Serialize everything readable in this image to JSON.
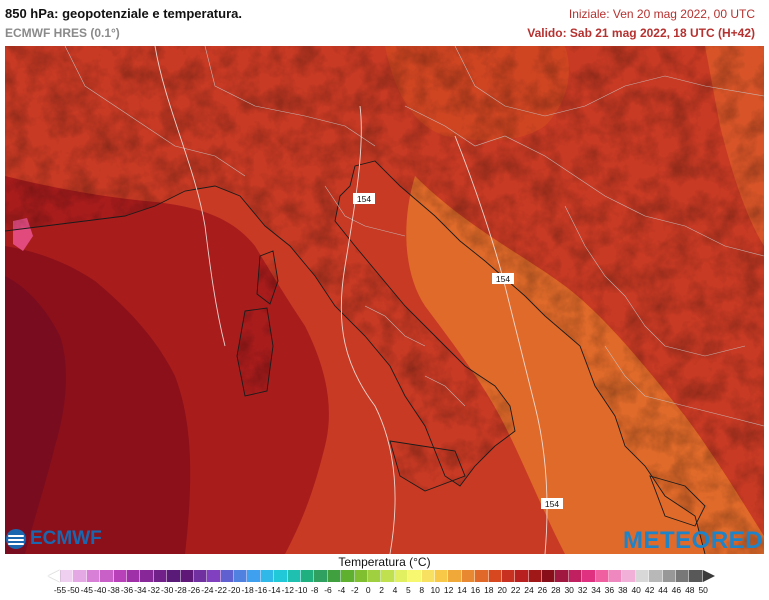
{
  "header": {
    "title": "850 hPa: geopotenziale e temperatura.",
    "model": "ECMWF HRES (0.1°)",
    "init": "Iniziale: Ven 20 mag 2022, 00 UTC",
    "valid": "Valido: Sab 21 mag 2022, 18 UTC (H+42)"
  },
  "map": {
    "contour_labels": [
      "154",
      "154",
      "154"
    ]
  },
  "logos": {
    "left": "ECMWF",
    "right": "METEORED"
  },
  "legend": {
    "title": "Temperatura (°C)",
    "ticks": [
      "-55",
      "-50",
      "-45",
      "-40",
      "-38",
      "-36",
      "-34",
      "-32",
      "-30",
      "-28",
      "-26",
      "-24",
      "-22",
      "-20",
      "-18",
      "-16",
      "-14",
      "-12",
      "-10",
      "-8",
      "-6",
      "-4",
      "-2",
      "0",
      "2",
      "4",
      "5",
      "8",
      "10",
      "12",
      "14",
      "16",
      "18",
      "20",
      "22",
      "24",
      "26",
      "28",
      "30",
      "32",
      "34",
      "36",
      "38",
      "40",
      "42",
      "44",
      "46",
      "48",
      "50"
    ],
    "colors": [
      "#f0d0f0",
      "#e4a8e4",
      "#d880d8",
      "#c860c8",
      "#b840b8",
      "#a030a8",
      "#882898",
      "#702088",
      "#5a1a78",
      "#601878",
      "#7030a0",
      "#8040c0",
      "#6060d0",
      "#5080e0",
      "#40a0f0",
      "#30b8e8",
      "#20c8d8",
      "#20c0b0",
      "#20b080",
      "#30a060",
      "#40a040",
      "#60b030",
      "#80c030",
      "#a0d040",
      "#c0e050",
      "#e0f060",
      "#f8f870",
      "#f8e060",
      "#f8c848",
      "#f0a838",
      "#e88830",
      "#e06828",
      "#d84820",
      "#c83020",
      "#b82020",
      "#a01818",
      "#880e1a",
      "#a01840",
      "#c02060",
      "#e03080",
      "#f060a0",
      "#f088c0",
      "#f0b0d8",
      "#d8d8d8",
      "#b8b8b8",
      "#989898",
      "#787878",
      "#585858"
    ]
  }
}
